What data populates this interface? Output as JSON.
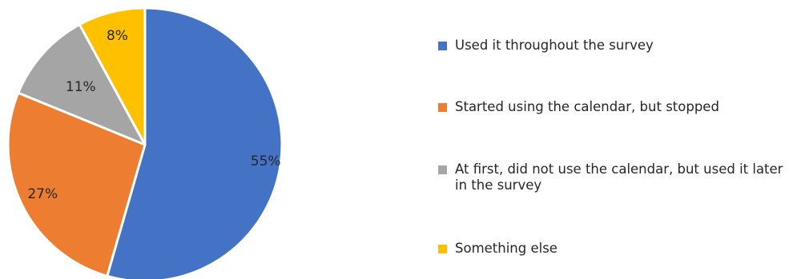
{
  "chart_data": {
    "type": "pie",
    "categories": [
      "Used it throughout the survey",
      "Started using the calendar, but stopped",
      "At first, did not use the calendar, but used it later in the survey",
      "Something else"
    ],
    "values": [
      55,
      27,
      11,
      8
    ],
    "labels": [
      "55%",
      "27%",
      "11%",
      "8%"
    ],
    "colors": [
      "#4472C4",
      "#ED7D31",
      "#A5A5A5",
      "#FFC000"
    ],
    "title": "",
    "legend_position": "right"
  },
  "legend": {
    "items": [
      {
        "label": "Used it throughout the survey",
        "color": "#4472C4"
      },
      {
        "label": "Started using the calendar, but stopped",
        "color": "#ED7D31"
      },
      {
        "label": "At first, did not use the calendar, but used it later in the survey",
        "color": "#A5A5A5"
      },
      {
        "label": "Something else",
        "color": "#FFC000"
      }
    ]
  }
}
